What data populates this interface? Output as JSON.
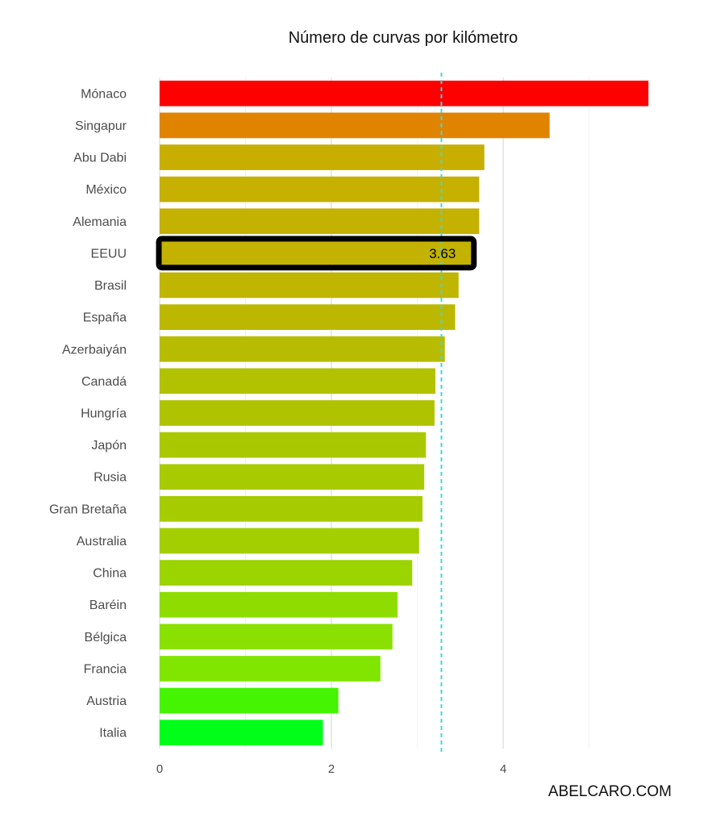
{
  "chart_data": {
    "type": "bar",
    "orientation": "horizontal",
    "title": "Número de curvas por kilómetro",
    "credit": "ABELCARO.COM",
    "categories": [
      "Mónaco",
      "Singapur",
      "Abu Dabi",
      "México",
      "Alemania",
      "EEUU",
      "Brasil",
      "España",
      "Azerbaiyán",
      "Canadá",
      "Hungría",
      "Japón",
      "Rusia",
      "Gran Bretaña",
      "Australia",
      "China",
      "Baréin",
      "Bélgica",
      "Francia",
      "Austria",
      "Italia"
    ],
    "values": [
      5.69,
      4.54,
      3.78,
      3.72,
      3.72,
      3.63,
      3.48,
      3.44,
      3.32,
      3.21,
      3.2,
      3.1,
      3.08,
      3.06,
      3.02,
      2.94,
      2.77,
      2.71,
      2.57,
      2.08,
      1.9
    ],
    "colors": [
      "#ff0000",
      "#e08400",
      "#c8ae00",
      "#c6b000",
      "#c5b100",
      "#c3b300",
      "#c0b500",
      "#bcb800",
      "#b8bc00",
      "#b2c100",
      "#afc300",
      "#aac800",
      "#a8ca00",
      "#a6cc00",
      "#a3cf00",
      "#9bd400",
      "#8fdd00",
      "#8ae000",
      "#80e600",
      "#44f400",
      "#00ff18"
    ],
    "highlight": {
      "category": "EEUU",
      "label": "3.63"
    },
    "reference_line": {
      "value": 3.28,
      "style": "dashed",
      "color": "#45d6dc"
    },
    "x_ticks": [
      0,
      2,
      4
    ],
    "xlim": [
      0,
      5.96
    ],
    "grid": true
  }
}
